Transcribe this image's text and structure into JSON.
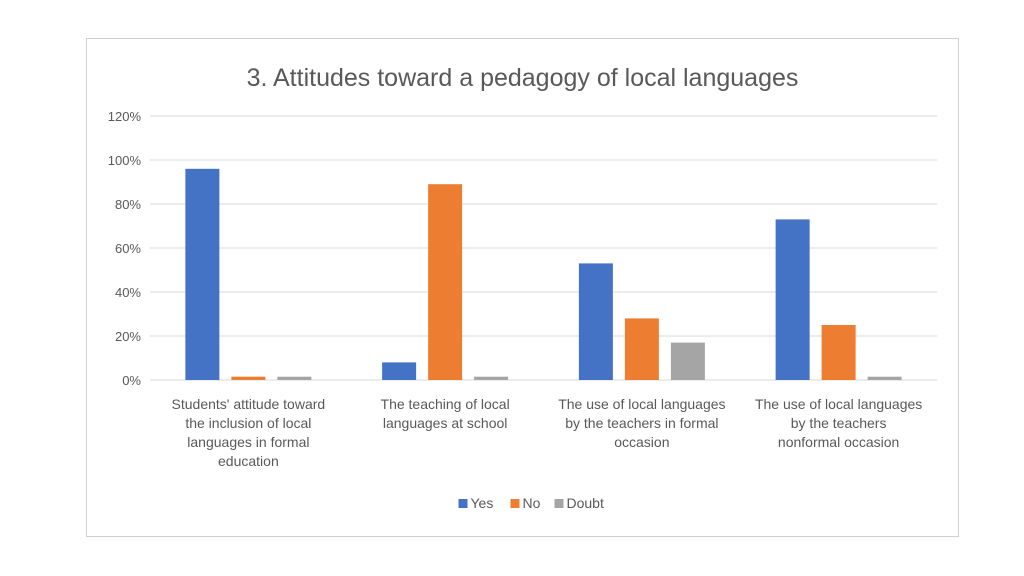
{
  "chart_data": {
    "type": "bar",
    "title": "3. Attitudes toward a pedagogy of local languages",
    "xlabel": "",
    "ylabel": "",
    "ylim": [
      0,
      1.2
    ],
    "yticks": [
      {
        "value": 0,
        "label": "0%"
      },
      {
        "value": 0.2,
        "label": "20%"
      },
      {
        "value": 0.4,
        "label": "40%"
      },
      {
        "value": 0.6,
        "label": "60%"
      },
      {
        "value": 0.8,
        "label": "80%"
      },
      {
        "value": 1.0,
        "label": "100%"
      },
      {
        "value": 1.2,
        "label": "120%"
      }
    ],
    "grid": true,
    "legend_position": "bottom",
    "categories": [
      [
        "Students' attitude toward",
        "the inclusion of local",
        "languages in formal",
        "education"
      ],
      [
        "The teaching of local",
        "languages at school"
      ],
      [
        "The use of local languages",
        "by the teachers in formal",
        "occasion"
      ],
      [
        "The use of local languages",
        "by the teachers",
        "nonformal occasion"
      ]
    ],
    "series": [
      {
        "name": "Yes",
        "color": "#4472c4",
        "values": [
          0.96,
          0.08,
          0.53,
          0.73
        ]
      },
      {
        "name": "No",
        "color": "#ed7d31",
        "values": [
          0.015,
          0.89,
          0.28,
          0.25
        ]
      },
      {
        "name": "Doubt",
        "color": "#a5a5a5",
        "values": [
          0.015,
          0.015,
          0.17,
          0.015
        ]
      }
    ]
  }
}
